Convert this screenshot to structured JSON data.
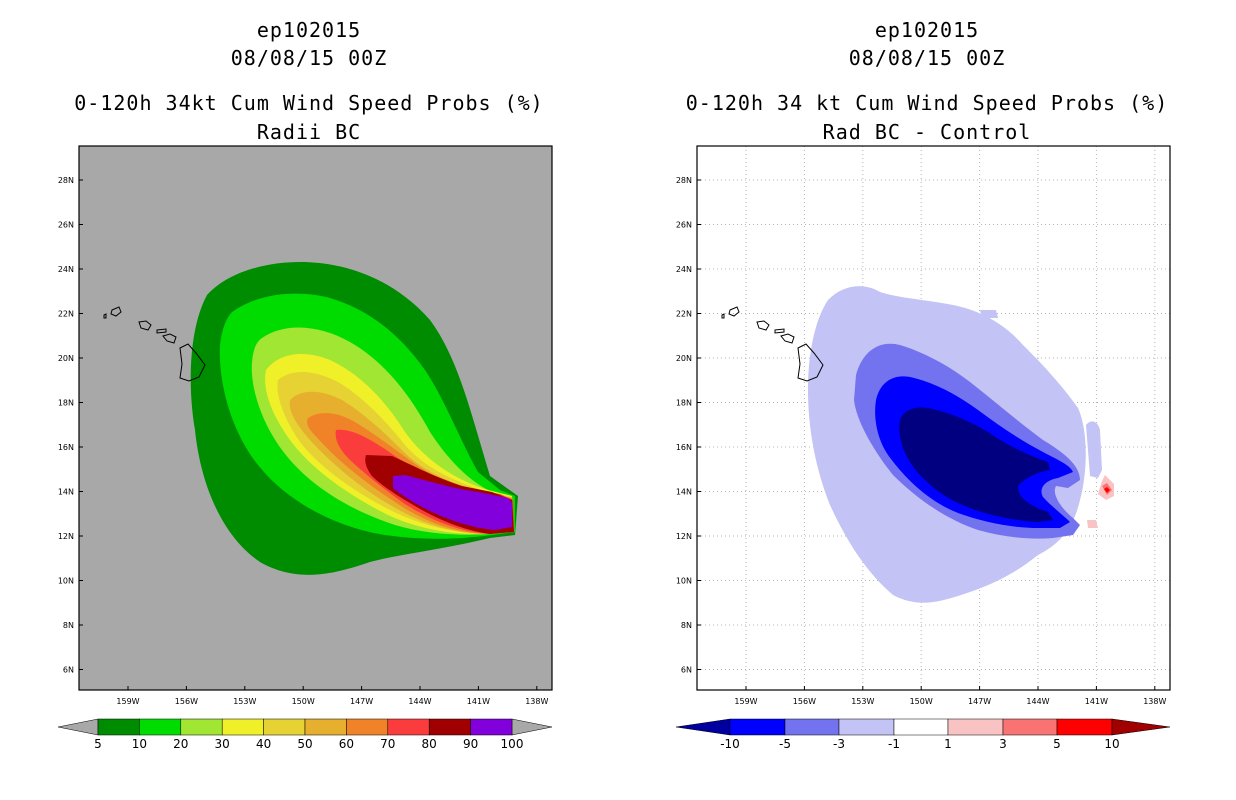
{
  "left": {
    "title_line1": "ep102015",
    "title_line2": "08/08/15 00Z",
    "title_line3": "0-120h 34kt Cum Wind Speed Probs (%)",
    "title_line4": "Radii BC",
    "lat_labels": [
      "28N",
      "26N",
      "24N",
      "22N",
      "20N",
      "18N",
      "16N",
      "14N",
      "12N",
      "10N",
      "8N",
      "6N"
    ],
    "lon_labels": [
      "159W",
      "156W",
      "153W",
      "150W",
      "147W",
      "144W",
      "141W",
      "138W"
    ],
    "colorbar": {
      "levels": [
        "5",
        "10",
        "20",
        "30",
        "40",
        "50",
        "60",
        "70",
        "80",
        "90",
        "100"
      ],
      "colors": [
        "#008c00",
        "#00dc00",
        "#a0e632",
        "#f0f028",
        "#e6d232",
        "#e6af2d",
        "#f08228",
        "#fa3c3c",
        "#a00000",
        "#8200dc"
      ]
    }
  },
  "right": {
    "title_line1": "ep102015",
    "title_line2": "08/08/15 00Z",
    "title_line3": "0-120h 34 kt Cum Wind Speed Probs (%)",
    "title_line4": "Rad BC - Control",
    "lat_labels": [
      "28N",
      "26N",
      "24N",
      "22N",
      "20N",
      "18N",
      "16N",
      "14N",
      "12N",
      "10N",
      "8N",
      "6N"
    ],
    "lon_labels": [
      "159W",
      "156W",
      "153W",
      "150W",
      "147W",
      "144W",
      "141W",
      "138W"
    ],
    "colorbar": {
      "levels": [
        "-10",
        "-5",
        "-3",
        "-1",
        "1",
        "3",
        "5",
        "10"
      ],
      "colors": [
        "#0000a0",
        "#0000ff",
        "#7373f0",
        "#c3c3f5",
        "#ffffff",
        "#fac3c3",
        "#fa7373",
        "#ff0000",
        "#a00000"
      ]
    }
  }
}
